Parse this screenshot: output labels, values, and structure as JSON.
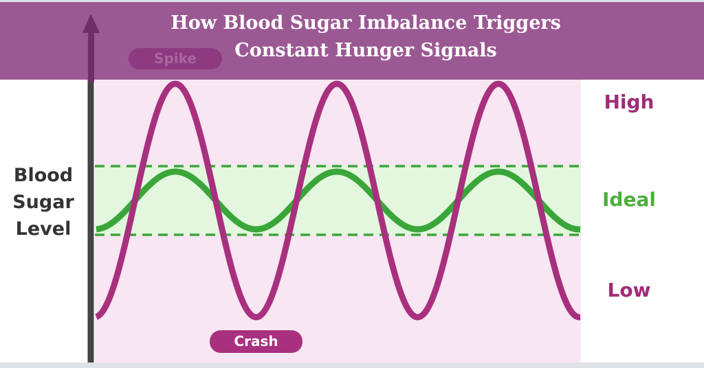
{
  "title": {
    "line1": "How Blood Sugar Imbalance Triggers",
    "line2": "Constant Hunger Signals"
  },
  "y_axis_label": {
    "line1": "Blood",
    "line2": "Sugar",
    "line3": "Level"
  },
  "levels": {
    "high": "High",
    "ideal": "Ideal",
    "low": "Low"
  },
  "annotations": {
    "spike": "Spike",
    "crash": "Crash"
  },
  "colors": {
    "banner": "#98548f",
    "imbalanced_curve": "#a8307e",
    "ideal_curve": "#3aa63a",
    "ideal_band": "#e2f7de",
    "plot_bg": "#f8e6f2",
    "axis": "#444444"
  }
}
